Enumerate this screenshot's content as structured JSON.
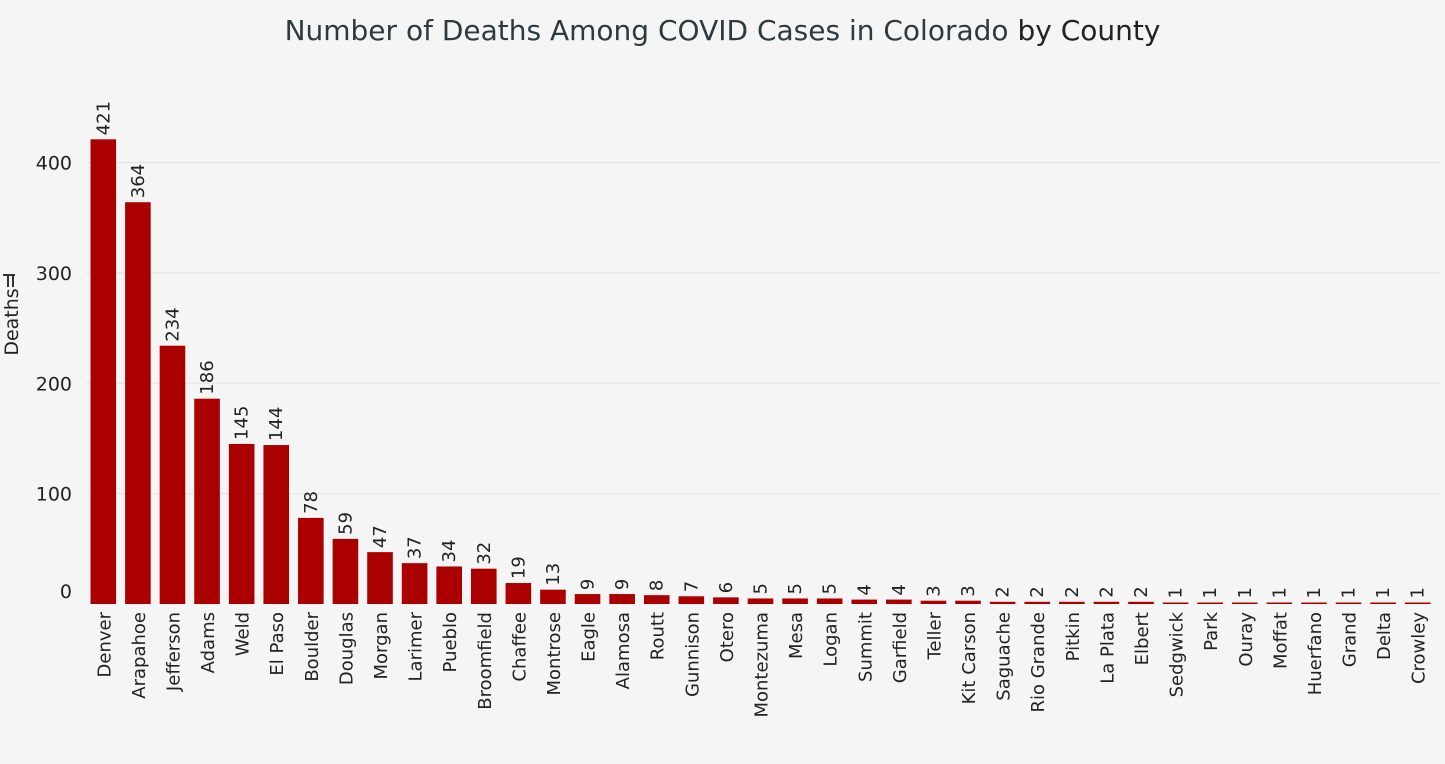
{
  "chart_data": {
    "type": "bar",
    "title": "Number of Deaths Among COVID Cases in Colorado",
    "title_tail": "by County",
    "xlabel": "",
    "ylabel": "Deaths",
    "ylim": [
      0,
      440
    ],
    "yticks": [
      0,
      100,
      200,
      300,
      400
    ],
    "grid": true,
    "bar_color": "#aa0000",
    "categories": [
      "Denver",
      "Arapahoe",
      "Jefferson",
      "Adams",
      "Weld",
      "El Paso",
      "Boulder",
      "Douglas",
      "Morgan",
      "Larimer",
      "Pueblo",
      "Broomfield",
      "Chaffee",
      "Montrose",
      "Eagle",
      "Alamosa",
      "Routt",
      "Gunnison",
      "Otero",
      "Montezuma",
      "Mesa",
      "Logan",
      "Summit",
      "Garfield",
      "Teller",
      "Kit Carson",
      "Saguache",
      "Rio Grande",
      "Pitkin",
      "La Plata",
      "Elbert",
      "Sedgwick",
      "Park",
      "Ouray",
      "Moffat",
      "Huerfano",
      "Grand",
      "Delta",
      "Crowley"
    ],
    "values": [
      421,
      364,
      234,
      186,
      145,
      144,
      78,
      59,
      47,
      37,
      34,
      32,
      19,
      13,
      9,
      9,
      8,
      7,
      6,
      5,
      5,
      5,
      4,
      4,
      3,
      3,
      2,
      2,
      2,
      2,
      2,
      1,
      1,
      1,
      1,
      1,
      1,
      1,
      1
    ]
  }
}
